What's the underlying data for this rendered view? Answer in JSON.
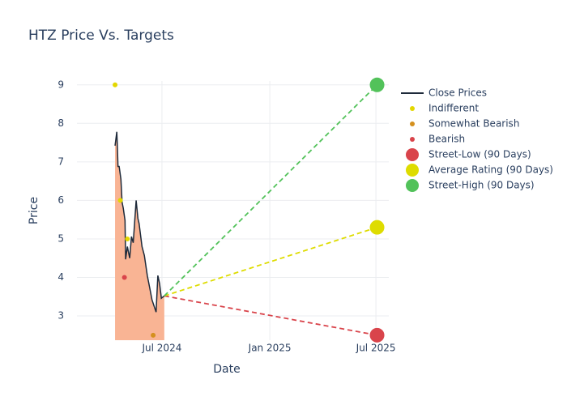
{
  "chart_data": {
    "type": "line",
    "title": "HTZ Price Vs. Targets",
    "x_label": "Date",
    "y_label": "Price",
    "xlim": [
      "2024-02-07",
      "2025-07-23"
    ],
    "xticks": [
      {
        "value": "2024-07-01",
        "label": "Jul 2024"
      },
      {
        "value": "2025-01-01",
        "label": "Jan 2025"
      },
      {
        "value": "2025-07-01",
        "label": "Jul 2025"
      }
    ],
    "ylim": [
      2.37,
      9.1
    ],
    "yticks": [
      3,
      4,
      5,
      6,
      7,
      8,
      9
    ],
    "grid": true,
    "legend": "right",
    "series": [
      {
        "name": "Close Prices",
        "color": "#1e2a3a",
        "fill": "#f9b494",
        "mode": "area-line",
        "x": [
          "2024-04-12",
          "2024-04-15",
          "2024-04-16",
          "2024-04-17",
          "2024-04-19",
          "2024-04-22",
          "2024-04-24",
          "2024-04-26",
          "2024-04-29",
          "2024-04-30",
          "2024-05-03",
          "2024-05-07",
          "2024-05-10",
          "2024-05-13",
          "2024-05-18",
          "2024-05-21",
          "2024-05-23",
          "2024-05-28",
          "2024-06-01",
          "2024-06-06",
          "2024-06-10",
          "2024-06-14",
          "2024-06-21",
          "2024-06-24",
          "2024-06-27",
          "2024-06-30",
          "2024-07-05"
        ],
        "values": [
          7.42,
          7.78,
          7.38,
          6.88,
          6.88,
          6.55,
          5.95,
          5.8,
          5.48,
          4.47,
          4.8,
          4.5,
          5.06,
          4.9,
          6.0,
          5.53,
          5.4,
          4.8,
          4.57,
          4.05,
          3.74,
          3.42,
          3.1,
          4.05,
          3.84,
          3.46,
          3.52
        ]
      },
      {
        "name": "Indifferent",
        "color": "#e3d700",
        "mode": "markers",
        "x": [
          "2024-04-12",
          "2024-04-21",
          "2024-05-03"
        ],
        "values": [
          9,
          6,
          5
        ]
      },
      {
        "name": "Somewhat Bearish",
        "color": "#d4901e",
        "mode": "markers",
        "x": [
          "2024-06-16"
        ],
        "values": [
          2.5
        ]
      },
      {
        "name": "Bearish",
        "color": "#d9444b",
        "mode": "markers",
        "x": [
          "2024-04-28"
        ],
        "values": [
          4
        ]
      },
      {
        "name": "Street-Low (90 Days)",
        "color": "#d9444b",
        "mode": "target",
        "x": [
          "2024-07-05",
          "2025-07-03"
        ],
        "values": [
          3.52,
          2.5
        ]
      },
      {
        "name": "Average Rating (90 Days)",
        "color": "#dedc00",
        "mode": "target",
        "x": [
          "2024-07-05",
          "2025-07-03"
        ],
        "values": [
          3.52,
          5.3
        ]
      },
      {
        "name": "Street-High (90 Days)",
        "color": "#52c25a",
        "mode": "target",
        "x": [
          "2024-07-05",
          "2025-07-03"
        ],
        "values": [
          3.52,
          9
        ]
      }
    ]
  }
}
